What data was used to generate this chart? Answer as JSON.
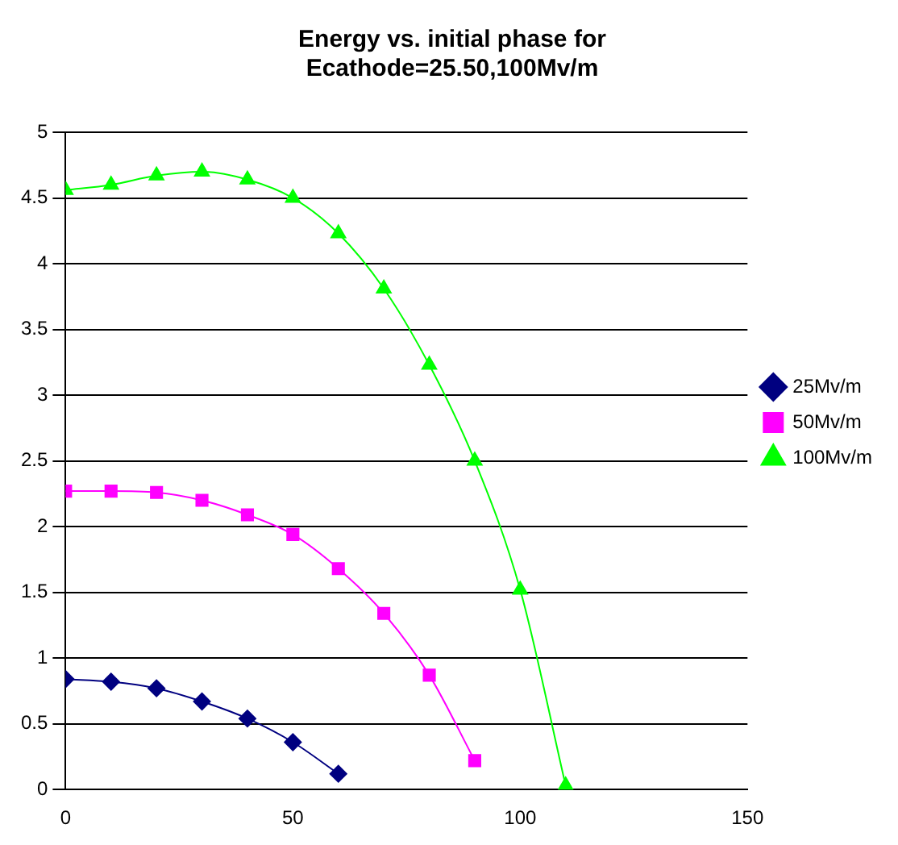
{
  "chart_data": {
    "type": "line",
    "title": "Energy vs. initial phase for\nEcathode=25.50,100Mv/m",
    "xlim": [
      0,
      150
    ],
    "xticks": [
      0,
      50,
      100,
      150
    ],
    "ylim": [
      0,
      5
    ],
    "yticks": [
      0,
      0.5,
      1,
      1.5,
      2,
      2.5,
      3,
      3.5,
      4,
      4.5,
      5
    ],
    "grid": "y",
    "legend": "right",
    "series": [
      {
        "name": "25Mv/m",
        "color": "#000080",
        "marker": "diamond",
        "x": [
          0,
          10,
          20,
          30,
          40,
          50,
          60
        ],
        "values": [
          0.84,
          0.82,
          0.77,
          0.67,
          0.54,
          0.36,
          0.12
        ]
      },
      {
        "name": "50Mv/m",
        "color": "#ff00ff",
        "marker": "square",
        "x": [
          0,
          10,
          20,
          30,
          40,
          50,
          60,
          70,
          80,
          90
        ],
        "values": [
          2.27,
          2.27,
          2.26,
          2.2,
          2.09,
          1.94,
          1.68,
          1.34,
          0.87,
          0.22
        ]
      },
      {
        "name": "100Mv/m",
        "color": "#00ff00",
        "marker": "triangle",
        "x": [
          0,
          10,
          20,
          30,
          40,
          50,
          60,
          70,
          80,
          90,
          100,
          110
        ],
        "values": [
          4.56,
          4.6,
          4.67,
          4.7,
          4.64,
          4.5,
          4.23,
          3.81,
          3.23,
          2.5,
          1.52,
          0.03
        ]
      }
    ]
  }
}
